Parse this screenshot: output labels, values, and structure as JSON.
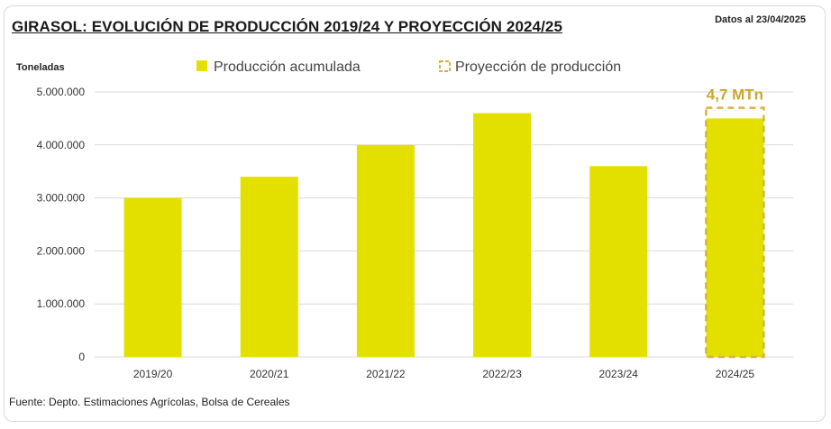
{
  "header": {
    "title": "GIRASOL: EVOLUCIÓN DE PRODUCCIÓN 2019/24 Y PROYECCIÓN 2024/25",
    "date_note": "Datos al 23/04/2025"
  },
  "footer": {
    "source": "Fuente: Depto. Estimaciones Agrícolas, Bolsa de Cereales"
  },
  "colors": {
    "bar": "#e3e000",
    "projection_outline": "#d4b43c",
    "annotation": "#c9a92c",
    "grid": "#d9d9d9"
  },
  "chart_data": {
    "type": "bar",
    "title": "GIRASOL: EVOLUCIÓN DE PRODUCCIÓN 2019/24 Y PROYECCIÓN 2024/25",
    "ylabel": "Toneladas",
    "xlabel": "",
    "ylim": [
      0,
      5000000
    ],
    "yticks": [
      0,
      1000000,
      2000000,
      3000000,
      4000000,
      5000000
    ],
    "ytick_labels": [
      "0",
      "1.000.000",
      "2.000.000",
      "3.000.000",
      "4.000.000",
      "5.000.000"
    ],
    "categories": [
      "2019/20",
      "2020/21",
      "2021/22",
      "2022/23",
      "2023/24",
      "2024/25"
    ],
    "grid": true,
    "legend_position": "top",
    "series": [
      {
        "name": "Producción acumulada",
        "values": [
          3000000,
          3400000,
          4000000,
          4600000,
          3600000,
          4500000
        ]
      },
      {
        "name": "Proyección de producción",
        "values": [
          null,
          null,
          null,
          null,
          null,
          4700000
        ]
      }
    ],
    "annotations": [
      {
        "category": "2024/25",
        "text": "4,7 MTn"
      }
    ]
  }
}
